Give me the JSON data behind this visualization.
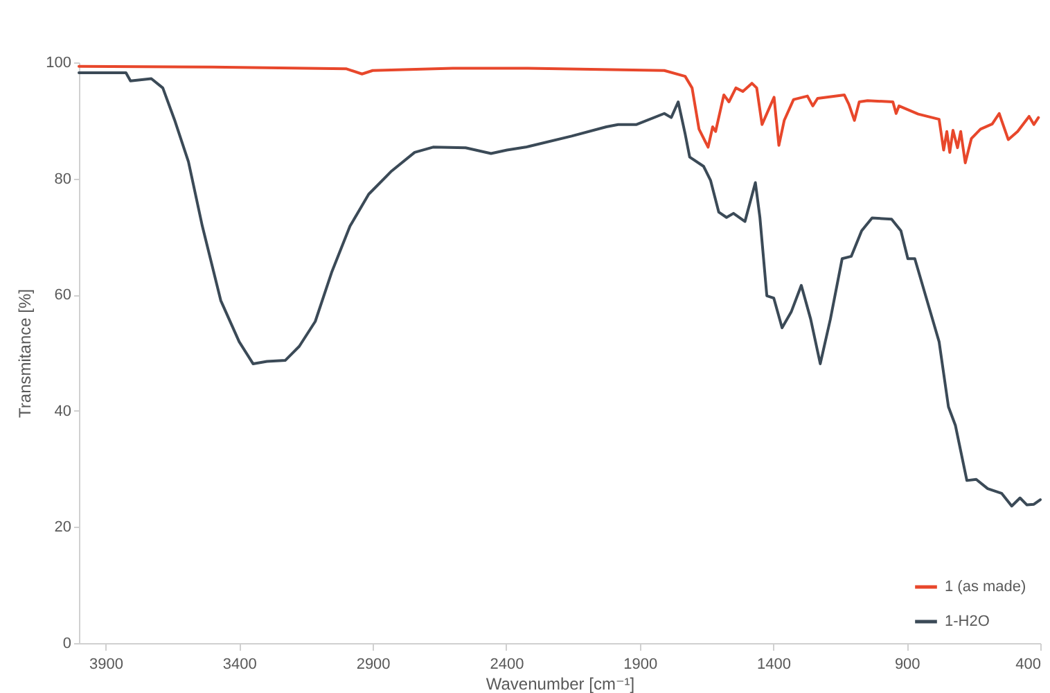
{
  "chart_data": {
    "type": "line",
    "xlabel": "Wavenumber [cm⁻¹]",
    "ylabel": "Transmitance [%]",
    "xlim": [
      4000,
      400
    ],
    "ylim": [
      0,
      100
    ],
    "xticks": [
      3900,
      3400,
      2900,
      2400,
      1900,
      1400,
      900,
      400
    ],
    "yticks": [
      0,
      20,
      40,
      60,
      80,
      100
    ],
    "grid": false,
    "legend": "bottom right",
    "marker": "none",
    "line_style": "solid",
    "series": [
      {
        "name": "1 (as made)",
        "color": "#e8472b",
        "x": [
          4000,
          3500,
          3000,
          2940,
          2900,
          2600,
          2327,
          1808,
          1730,
          1704,
          1678,
          1644,
          1627,
          1616,
          1585,
          1566,
          1540,
          1514,
          1480,
          1462,
          1442,
          1420,
          1397,
          1379,
          1359,
          1324,
          1272,
          1252,
          1234,
          1134,
          1117,
          1096,
          1078,
          1047,
          952,
          940,
          929,
          857,
          779,
          762,
          750,
          739,
          727,
          710,
          698,
          681,
          658,
          624,
          580,
          554,
          520,
          485,
          442,
          424,
          407
        ],
        "values": [
          99.3,
          99.2,
          98.9,
          98.0,
          98.6,
          99.0,
          99.0,
          98.6,
          97.6,
          95.6,
          88.5,
          85.4,
          88.9,
          88.1,
          94.4,
          93.2,
          95.6,
          95.0,
          96.4,
          95.6,
          89.3,
          91.6,
          94.0,
          85.7,
          90.0,
          93.6,
          94.2,
          92.5,
          93.8,
          94.4,
          92.8,
          90.0,
          93.2,
          93.4,
          93.2,
          91.2,
          92.5,
          91.1,
          90.2,
          84.9,
          88.1,
          84.5,
          88.3,
          85.3,
          88.1,
          82.7,
          86.9,
          88.5,
          89.4,
          91.2,
          86.7,
          88.1,
          90.7,
          89.3,
          90.5
        ]
      },
      {
        "name": "1-H2O",
        "color": "#3b4a57",
        "x": [
          4000,
          3824,
          3807,
          3729,
          3686,
          3642,
          3590,
          3538,
          3469,
          3400,
          3348,
          3296,
          3227,
          3175,
          3115,
          3054,
          2985,
          2915,
          2829,
          2743,
          2674,
          2552,
          2457,
          2397,
          2327,
          2155,
          2025,
          1981,
          1912,
          1808,
          1782,
          1756,
          1730,
          1713,
          1661,
          1635,
          1604,
          1575,
          1549,
          1506,
          1467,
          1450,
          1424,
          1398,
          1367,
          1333,
          1295,
          1260,
          1224,
          1186,
          1142,
          1108,
          1069,
          1030,
          957,
          922,
          896,
          870,
          814,
          779,
          744,
          718,
          675,
          640,
          597,
          545,
          507,
          476,
          450,
          424,
          400
        ],
        "values": [
          98.2,
          98.2,
          96.8,
          97.2,
          95.6,
          90.1,
          82.9,
          71.8,
          59.0,
          51.9,
          48.1,
          48.5,
          48.7,
          51.1,
          55.4,
          63.8,
          71.8,
          77.3,
          81.3,
          84.5,
          85.4,
          85.3,
          84.3,
          84.9,
          85.4,
          87.3,
          88.9,
          89.3,
          89.3,
          91.2,
          90.5,
          93.2,
          87.7,
          83.7,
          82.1,
          79.7,
          74.2,
          73.3,
          74.0,
          72.6,
          79.3,
          73.3,
          59.8,
          59.4,
          54.3,
          57.0,
          61.6,
          55.8,
          48.1,
          55.8,
          66.2,
          66.6,
          71.0,
          73.2,
          73.0,
          71.0,
          66.2,
          66.2,
          57.4,
          51.9,
          40.7,
          37.5,
          28.0,
          28.2,
          26.6,
          25.8,
          23.6,
          25.0,
          23.8,
          23.9,
          24.7
        ]
      }
    ]
  }
}
